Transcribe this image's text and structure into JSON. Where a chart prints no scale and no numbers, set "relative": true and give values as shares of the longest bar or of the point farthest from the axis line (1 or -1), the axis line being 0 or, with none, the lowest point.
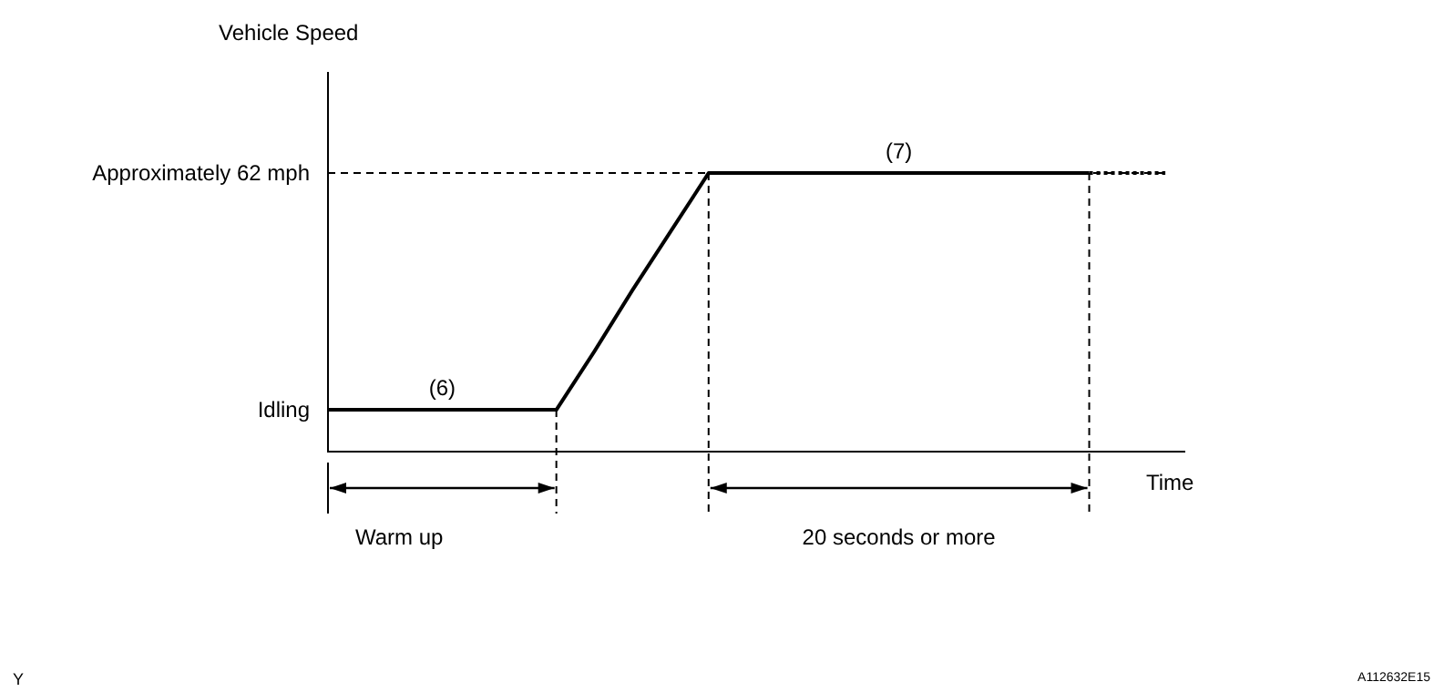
{
  "chart_data": {
    "type": "line",
    "relative": true,
    "xlabel": "Time",
    "categories": [
      null,
      null,
      null,
      null,
      null,
      null,
      null,
      null,
      null,
      null,
      null,
      null,
      null,
      null,
      null,
      null,
      null,
      null,
      null,
      null,
      null,
      null,
      null
    ],
    "series": [
      {
        "color": "#000000",
        "line_style": "solid",
        "values": [
          0.15,
          0.15,
          0.15,
          0.15,
          0.15,
          0.15,
          0.15,
          0.36,
          0.58,
          0.79,
          1,
          1,
          1,
          1,
          1,
          1,
          1,
          1,
          1,
          1,
          1,
          null,
          null
        ]
      },
      {
        "color": "#000000",
        "line_style": "dotted",
        "values": [
          null,
          null,
          null,
          null,
          null,
          null,
          null,
          null,
          null,
          null,
          null,
          null,
          null,
          null,
          null,
          null,
          null,
          null,
          null,
          null,
          1,
          1,
          1
        ]
      }
    ],
    "ref_lines": [
      {
        "axis": "y",
        "value": 1,
        "label": "Approximately 62 mph",
        "line_style": "dashed",
        "color": "#000000"
      }
    ],
    "annotations": [
      "Vehicle Speed",
      "Idling",
      "(6)",
      "(7)",
      "Warm up",
      "20 seconds or more",
      "Y",
      "A112632E15"
    ],
    "grid": false,
    "legend": false,
    "marker": "none"
  }
}
